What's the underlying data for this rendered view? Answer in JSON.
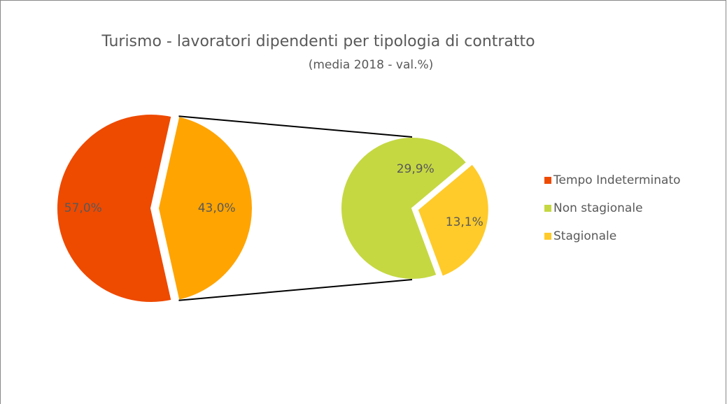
{
  "chart_data": {
    "type": "pie",
    "title": "Turismo - lavoratori dipendenti per tipologia di contratto",
    "subtitle": "(media 2018 - val.%)",
    "categories": [
      "Tempo Indeterminato",
      "Non stagionale",
      "Stagionale"
    ],
    "values": [
      57.0,
      29.9,
      13.1
    ],
    "value_labels": [
      "57,0%",
      "29,9%",
      "13,1%"
    ],
    "colors": [
      "#ee4a00",
      "#c5d842",
      "#ffcb2a"
    ],
    "other": {
      "value": 43.0,
      "value_label": "43,0%",
      "color": "#ffa400"
    },
    "legend": "right"
  }
}
